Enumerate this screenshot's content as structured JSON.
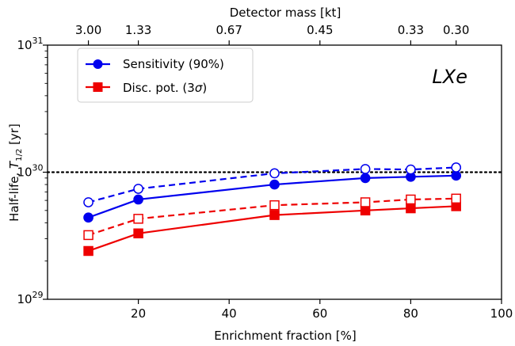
{
  "chart_data": {
    "type": "line",
    "xlabel": "Enrichment fraction [%]",
    "ylabel": "Half-life, T1/2 [yr]",
    "ylabel_parts": {
      "main": "Half-life, ",
      "symbol": "T",
      "sub": "1/2",
      "unit": " [yr]"
    },
    "top_axis_label": "Detector mass [kt]",
    "xlim": [
      0,
      100
    ],
    "ylim": [
      1e+29,
      1e+31
    ],
    "y_scale": "log",
    "x_ticks": [
      {
        "value": 20,
        "label": "20"
      },
      {
        "value": 40,
        "label": "40"
      },
      {
        "value": 60,
        "label": "60"
      },
      {
        "value": 80,
        "label": "80"
      },
      {
        "value": 100,
        "label": "100"
      }
    ],
    "y_ticks": [
      {
        "value": 1e+29,
        "base": "10",
        "exp": "29"
      },
      {
        "value": 1e+30,
        "base": "10",
        "exp": "30"
      },
      {
        "value": 1e+31,
        "base": "10",
        "exp": "31"
      }
    ],
    "top_ticks": [
      {
        "x": 9,
        "label": "3.00"
      },
      {
        "x": 20,
        "label": "1.33"
      },
      {
        "x": 40,
        "label": "0.67"
      },
      {
        "x": 60,
        "label": "0.45"
      },
      {
        "x": 80,
        "label": "0.33"
      },
      {
        "x": 90,
        "label": "0.30"
      }
    ],
    "reference_line": {
      "y": 1e+30,
      "style": "dotted",
      "color": "#000000"
    },
    "annotation": "LXe",
    "legend_position": "top-left",
    "legend": [
      {
        "label": "Sensitivity (90%)",
        "color": "#0000ee",
        "marker": "circle"
      },
      {
        "label_prefix": "Disc. pot. (3",
        "label_symbol": "σ",
        "label_suffix": ")",
        "color": "#ee0000",
        "marker": "square"
      }
    ],
    "series": [
      {
        "name": "Sensitivity (90%)",
        "color": "#0000ee",
        "marker": "circle",
        "fill": "filled",
        "linestyle": "solid",
        "x": [
          9,
          20,
          50,
          70,
          80,
          90
        ],
        "y": [
          4.4e+29,
          6.1e+29,
          8e+29,
          9e+29,
          9.2e+29,
          9.4e+29
        ]
      },
      {
        "color": "#0000ee",
        "marker": "circle",
        "fill": "open",
        "linestyle": "dashed",
        "x": [
          9,
          20,
          50,
          70,
          80,
          90
        ],
        "y": [
          5.8e+29,
          7.4e+29,
          9.8e+29,
          1.06e+30,
          1.05e+30,
          1.09e+30
        ]
      },
      {
        "name": "Disc. pot. (3σ)",
        "color": "#ee0000",
        "marker": "square",
        "fill": "filled",
        "linestyle": "solid",
        "x": [
          9,
          20,
          50,
          70,
          80,
          90
        ],
        "y": [
          2.4e+29,
          3.3e+29,
          4.6e+29,
          5e+29,
          5.2e+29,
          5.4e+29
        ]
      },
      {
        "color": "#ee0000",
        "marker": "square",
        "fill": "open",
        "linestyle": "dashed",
        "x": [
          9,
          20,
          50,
          70,
          80,
          90
        ],
        "y": [
          3.2e+29,
          4.3e+29,
          5.5e+29,
          5.8e+29,
          6.1e+29,
          6.2e+29
        ]
      }
    ]
  }
}
